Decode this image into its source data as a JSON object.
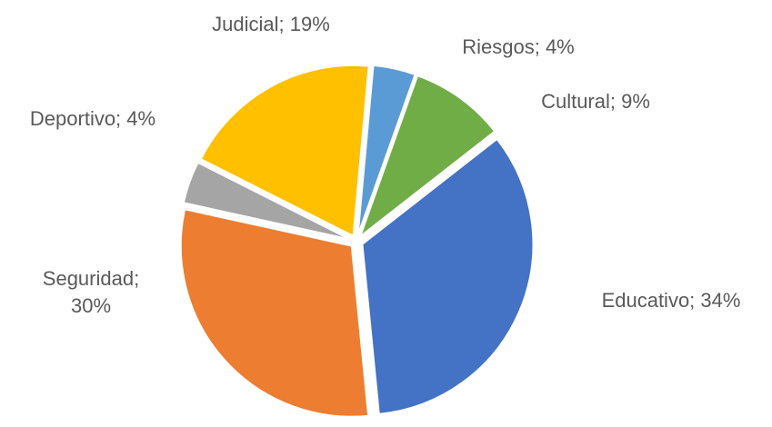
{
  "chart_data": {
    "type": "pie",
    "categories": [
      "Educativo",
      "Seguridad",
      "Deportivo",
      "Judicial",
      "Riesgos",
      "Cultural"
    ],
    "values": [
      34,
      30,
      4,
      19,
      4,
      9
    ],
    "value_labels": [
      "Educativo; 34%",
      "Seguridad; 30%",
      "Deportivo; 4%",
      "Judicial; 19%",
      "Riesgos; 4%",
      "Cultural; 9%"
    ],
    "colors": [
      "#4472c4",
      "#ed7d31",
      "#a5a5a5",
      "#ffc000",
      "#5b9bd5",
      "#70ad47"
    ]
  }
}
